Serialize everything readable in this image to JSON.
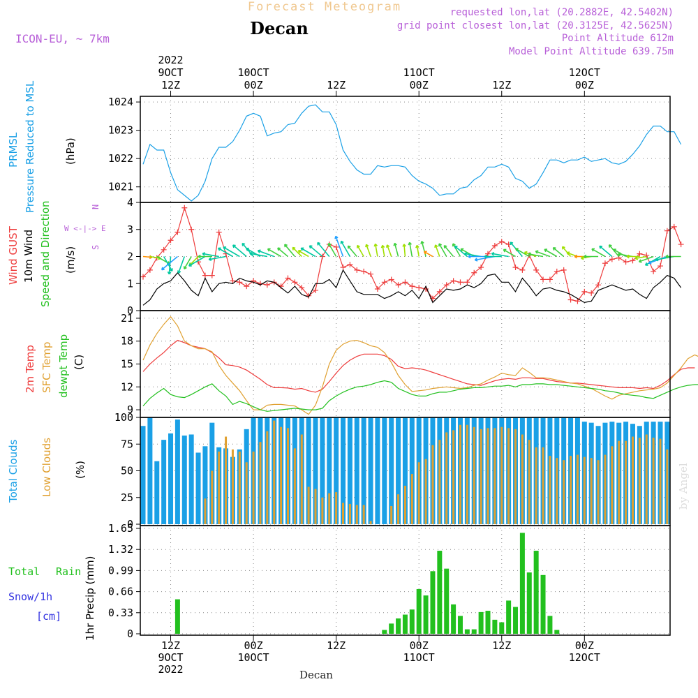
{
  "header": {
    "forecast_title": "Forecast Meteogram",
    "location": "Decan",
    "model": "ICON-EU, ~ 7km",
    "requested": "requested lon,lat (20.2882E, 42.5402N)",
    "gridpoint": "grid point closest lon,lat (20.3125E, 42.5625N)",
    "point_alt": "Point Altitude 612m",
    "model_alt": "Model Point Altitude 639.75m",
    "footer_location": "Decan",
    "watermark": "by Angel"
  },
  "colors": {
    "blue": "#1aa0e6",
    "red": "#ee3b3b",
    "orange": "#e0a030",
    "green": "#22c01e",
    "black": "#000000",
    "purple": "#b860d8",
    "grid": "#888888",
    "snow": "#3030e0"
  },
  "time_axis": {
    "top_labels": [
      {
        "i": 4,
        "lines": [
          "2022",
          "9OCT",
          "12Z"
        ]
      },
      {
        "i": 16,
        "lines": [
          "10OCT",
          "00Z"
        ]
      },
      {
        "i": 28,
        "lines": [
          "12Z"
        ]
      },
      {
        "i": 40,
        "lines": [
          "11OCT",
          "00Z"
        ]
      },
      {
        "i": 52,
        "lines": [
          "12Z"
        ]
      },
      {
        "i": 64,
        "lines": [
          "12OCT",
          "00Z"
        ]
      }
    ],
    "bottom_labels": [
      {
        "i": 4,
        "lines": [
          "12Z",
          "9OCT",
          "2022"
        ]
      },
      {
        "i": 16,
        "lines": [
          "00Z",
          "10OCT"
        ]
      },
      {
        "i": 28,
        "lines": [
          "12Z"
        ]
      },
      {
        "i": 40,
        "lines": [
          "00Z",
          "11OCT"
        ]
      },
      {
        "i": 52,
        "lines": [
          "12Z"
        ]
      },
      {
        "i": 64,
        "lines": [
          "00Z",
          "12OCT"
        ]
      }
    ]
  },
  "chart_data": [
    {
      "type": "line",
      "panel": "pressure",
      "title": "PRMSL Pressure Reduced to MSL",
      "ylabel": "(hPa)",
      "label_lines": [
        "PRMSL",
        "Pressure Reduced to MSL"
      ],
      "yticks": [
        1021,
        1022,
        1023,
        1024
      ],
      "ylim": [
        1020.45,
        1024.2
      ],
      "x_hours": "hourly steps from 08 UTC 9 OCT 2022",
      "series": [
        {
          "name": "PRMSL",
          "color": "#1aa0e6",
          "values": [
            1021.8,
            1022.5,
            1022.3,
            1022.3,
            1021.5,
            1020.9,
            1020.7,
            1020.5,
            1020.7,
            1021.2,
            1022.0,
            1022.4,
            1022.4,
            1022.6,
            1023.0,
            1023.5,
            1023.6,
            1023.5,
            1022.8,
            1022.9,
            1022.95,
            1023.2,
            1023.25,
            1023.6,
            1023.85,
            1023.9,
            1023.65,
            1023.65,
            1023.2,
            1022.3,
            1021.9,
            1021.6,
            1021.45,
            1021.45,
            1021.75,
            1021.7,
            1021.75,
            1021.75,
            1021.7,
            1021.4,
            1021.2,
            1021.1,
            1020.95,
            1020.7,
            1020.75,
            1020.75,
            1020.95,
            1021.0,
            1021.25,
            1021.4,
            1021.7,
            1021.7,
            1021.8,
            1021.7,
            1021.3,
            1021.2,
            1020.95,
            1021.1,
            1021.5,
            1021.95,
            1021.95,
            1021.85,
            1021.95,
            1021.95,
            1022.05,
            1021.9,
            1021.95,
            1022.0,
            1021.85,
            1021.8,
            1021.9,
            1022.15,
            1022.45,
            1022.85,
            1023.15,
            1023.15,
            1022.95,
            1022.95,
            1022.5
          ]
        }
      ]
    },
    {
      "type": "line",
      "panel": "wind",
      "title": "Wind GUST / 10m Wind Speed and Direction",
      "ylabel": "(m/s)",
      "label_lines": [
        "Wind GUST",
        "10m Wind",
        "Speed and Direction"
      ],
      "compass": [
        "N",
        "W <-|-> E",
        "S"
      ],
      "yticks": [
        0,
        1,
        2,
        3,
        4
      ],
      "ylim": [
        0,
        4
      ],
      "series": [
        {
          "name": "Wind GUST",
          "color": "#ee3b3b",
          "marker": "+",
          "values": [
            1.25,
            1.5,
            1.95,
            2.25,
            2.6,
            2.9,
            3.8,
            3.0,
            1.8,
            1.3,
            1.3,
            2.9,
            2.1,
            1.1,
            1.05,
            0.9,
            1.1,
            1.0,
            0.95,
            1.05,
            0.9,
            1.2,
            1.05,
            0.85,
            0.55,
            0.75,
            2.0,
            2.45,
            2.35,
            1.6,
            1.7,
            1.5,
            1.45,
            1.35,
            0.8,
            1.05,
            1.15,
            0.95,
            1.05,
            0.9,
            0.85,
            0.8,
            0.45,
            0.7,
            0.95,
            1.1,
            1.05,
            1.05,
            1.4,
            1.6,
            2.1,
            2.4,
            2.55,
            2.45,
            1.6,
            1.5,
            2.05,
            1.5,
            1.15,
            1.15,
            1.45,
            1.5,
            0.4,
            0.35,
            0.7,
            0.65,
            0.95,
            1.75,
            1.9,
            1.95,
            1.8,
            1.85,
            2.1,
            2.05,
            1.45,
            1.65,
            2.95,
            3.1,
            2.45
          ]
        },
        {
          "name": "10m Wind",
          "color": "#000000",
          "values": [
            0.2,
            0.4,
            0.8,
            1.0,
            1.1,
            1.4,
            1.1,
            0.75,
            0.55,
            1.2,
            0.7,
            1.0,
            1.05,
            1.0,
            1.2,
            1.1,
            1.05,
            0.95,
            1.1,
            1.05,
            0.85,
            0.65,
            0.9,
            0.6,
            0.5,
            1.0,
            1.0,
            1.15,
            0.85,
            1.5,
            1.1,
            0.7,
            0.6,
            0.6,
            0.6,
            0.45,
            0.55,
            0.7,
            0.55,
            0.75,
            0.45,
            0.9,
            0.3,
            0.55,
            0.8,
            0.75,
            0.8,
            0.95,
            0.85,
            1.0,
            1.3,
            1.35,
            1.05,
            1.05,
            0.7,
            1.2,
            0.9,
            0.55,
            0.8,
            0.85,
            0.75,
            0.7,
            0.6,
            0.45,
            0.3,
            0.35,
            0.75,
            0.85,
            0.95,
            0.85,
            0.75,
            0.8,
            0.6,
            0.45,
            0.85,
            1.05,
            1.3,
            1.2,
            0.85
          ]
        }
      ],
      "direction_arrows_deg": [
        95,
        100,
        120,
        150,
        185,
        230,
        200,
        210,
        225,
        240,
        270,
        280,
        260,
        300,
        300,
        310,
        320,
        300,
        280,
        290,
        300,
        310,
        320,
        315,
        300,
        300,
        310,
        320,
        330,
        340,
        330,
        320,
        330,
        340,
        350,
        350,
        340,
        345,
        355,
        350,
        350,
        345,
        300,
        340,
        330,
        320,
        330,
        310,
        300,
        280,
        270,
        260,
        270,
        280,
        300,
        320,
        300,
        290,
        280,
        290,
        300,
        310,
        320,
        290,
        270,
        260,
        270,
        300,
        310,
        320,
        300,
        280,
        270,
        260,
        250,
        240,
        250,
        260,
        270
      ]
    },
    {
      "type": "line",
      "panel": "temperature",
      "title": "2m Temp / SFC Temp / dewpt Temp",
      "ylabel": "(C)",
      "label_lines": [
        "2m Temp",
        "SFC Temp",
        "dewpt Temp"
      ],
      "yticks": [
        9,
        12,
        15,
        18,
        21
      ],
      "ylim": [
        8,
        22
      ],
      "series": [
        {
          "name": "2m Temp",
          "color": "#ee3b3b",
          "values": [
            14.0,
            15.0,
            15.8,
            16.5,
            17.4,
            18.1,
            17.8,
            17.4,
            17.2,
            17.0,
            16.5,
            15.8,
            14.9,
            14.8,
            14.6,
            14.2,
            13.6,
            13.0,
            12.3,
            11.9,
            11.9,
            11.85,
            11.7,
            11.8,
            11.5,
            11.3,
            11.7,
            12.7,
            13.8,
            14.8,
            15.5,
            16.0,
            16.3,
            16.3,
            16.3,
            16.1,
            15.6,
            14.7,
            14.4,
            14.5,
            14.4,
            14.2,
            13.9,
            13.6,
            13.3,
            13.0,
            12.7,
            12.4,
            12.3,
            12.2,
            12.5,
            12.8,
            13.0,
            13.1,
            13.0,
            13.2,
            13.2,
            13.1,
            13.1,
            12.9,
            12.7,
            12.6,
            12.5,
            12.5,
            12.4,
            12.3,
            12.2,
            12.1,
            12.0,
            11.9,
            11.9,
            11.9,
            11.8,
            11.9,
            11.8,
            12.2,
            12.8,
            13.6,
            14.3,
            14.5,
            14.5
          ]
        },
        {
          "name": "SFC Temp",
          "color": "#e0a030",
          "values": [
            15.5,
            17.5,
            19.0,
            20.2,
            21.2,
            20.0,
            18.0,
            17.4,
            17.0,
            17.0,
            16.6,
            14.8,
            13.5,
            12.5,
            11.5,
            10.2,
            9.0,
            9.0,
            9.6,
            9.7,
            9.7,
            9.6,
            9.5,
            9.0,
            8.4,
            9.6,
            12.0,
            15.0,
            16.8,
            17.6,
            18.0,
            18.1,
            17.8,
            17.4,
            17.2,
            16.5,
            15.2,
            13.5,
            12.3,
            11.4,
            11.5,
            11.6,
            11.8,
            11.9,
            12.0,
            11.9,
            11.8,
            11.9,
            12.2,
            12.4,
            12.9,
            13.3,
            13.8,
            13.6,
            13.5,
            14.5,
            13.9,
            13.2,
            13.2,
            13.1,
            12.9,
            12.7,
            12.5,
            12.4,
            12.1,
            11.8,
            11.3,
            10.8,
            10.4,
            10.9,
            11.1,
            11.3,
            11.5,
            11.6,
            11.7,
            11.9,
            12.5,
            13.5,
            14.5,
            15.7,
            16.2,
            15.8,
            14.5
          ]
        },
        {
          "name": "dewpt Temp",
          "color": "#22c01e",
          "values": [
            9.5,
            10.5,
            11.2,
            11.8,
            11.0,
            10.7,
            10.6,
            11.0,
            11.5,
            12.0,
            12.4,
            11.5,
            10.8,
            9.7,
            10.1,
            9.8,
            9.4,
            9.0,
            8.8,
            8.9,
            9.0,
            9.1,
            9.2,
            9.1,
            9.0,
            9.0,
            9.2,
            10.2,
            10.8,
            11.3,
            11.7,
            12.0,
            12.1,
            12.3,
            12.6,
            12.8,
            12.6,
            11.8,
            11.4,
            11.0,
            10.8,
            10.8,
            11.1,
            11.3,
            11.3,
            11.5,
            11.7,
            11.8,
            11.9,
            11.9,
            12.0,
            12.1,
            12.1,
            12.2,
            12.0,
            12.3,
            12.3,
            12.4,
            12.4,
            12.3,
            12.3,
            12.2,
            12.1,
            12.0,
            11.9,
            11.8,
            11.7,
            11.5,
            11.4,
            11.2,
            11.0,
            10.9,
            10.8,
            10.6,
            10.5,
            10.9,
            11.3,
            11.7,
            12.0,
            12.2,
            12.3,
            12.3
          ]
        }
      ]
    },
    {
      "type": "bar",
      "panel": "clouds",
      "title": "Total Clouds / Low Clouds",
      "ylabel": "(%)",
      "label_lines": [
        "Total Clouds",
        "Low Clouds"
      ],
      "yticks": [
        0,
        25,
        50,
        75,
        100
      ],
      "ylim": [
        0,
        100
      ],
      "series": [
        {
          "name": "Total Clouds",
          "color": "#1aa0e6",
          "values": [
            92,
            100,
            59,
            79,
            85,
            98,
            83,
            84,
            67,
            73,
            95,
            72,
            71,
            63,
            70,
            89,
            100,
            100,
            100,
            100,
            100,
            100,
            100,
            100,
            100,
            100,
            100,
            100,
            100,
            100,
            100,
            100,
            100,
            100,
            100,
            100,
            100,
            100,
            100,
            100,
            100,
            100,
            100,
            100,
            100,
            100,
            100,
            100,
            100,
            100,
            100,
            100,
            100,
            100,
            100,
            100,
            100,
            100,
            100,
            100,
            100,
            100,
            100,
            100,
            96,
            95,
            92,
            95,
            96,
            95,
            96,
            94,
            92,
            96,
            96,
            96,
            96,
            93,
            88,
            100,
            98
          ]
        },
        {
          "name": "Low Clouds",
          "color": "#e0a030",
          "values": [
            0,
            0,
            0,
            0,
            0,
            0,
            0,
            0,
            0,
            24,
            50,
            68,
            82,
            70,
            68,
            58,
            68,
            77,
            87,
            97,
            91,
            90,
            71,
            84,
            35,
            33,
            25,
            29,
            30,
            20,
            19,
            18,
            18,
            3,
            0,
            0,
            17,
            28,
            36,
            47,
            58,
            61,
            74,
            79,
            86,
            88,
            93,
            93,
            91,
            89,
            90,
            90,
            91,
            90,
            89,
            84,
            79,
            72,
            72,
            64,
            62,
            60,
            64,
            65,
            63,
            62,
            60,
            65,
            73,
            78,
            78,
            82,
            81,
            84,
            81,
            80,
            70,
            72,
            80,
            64
          ]
        }
      ]
    },
    {
      "type": "bar",
      "panel": "precip",
      "title": "1hr Precip (mm)",
      "ylabel": "1hr Precip (mm)",
      "label_lines": [
        "Total",
        "Rain",
        "Snow/1h",
        "[cm]"
      ],
      "yticks": [
        0,
        0.33,
        0.66,
        0.99,
        1.32,
        1.65
      ],
      "ytick_labels": [
        "0",
        "0.33",
        "0.66",
        "0.99",
        "1.32",
        "1.65"
      ],
      "ylim": [
        0,
        1.65
      ],
      "series": [
        {
          "name": "Total Rain",
          "color": "#22c01e",
          "values": [
            0,
            0,
            0,
            0,
            0,
            0.54,
            0,
            0,
            0,
            0,
            0,
            0,
            0,
            0,
            0,
            0,
            0,
            0,
            0,
            0,
            0,
            0,
            0,
            0,
            0,
            0,
            0,
            0,
            0,
            0,
            0,
            0,
            0,
            0,
            0,
            0.06,
            0.16,
            0.24,
            0.3,
            0.38,
            0.7,
            0.6,
            0.98,
            1.3,
            1.02,
            0.46,
            0.28,
            0.07,
            0.07,
            0.34,
            0.36,
            0.22,
            0.18,
            0.52,
            0.42,
            1.58,
            0.96,
            1.3,
            0.92,
            0.28,
            0.06,
            0,
            0,
            0,
            0,
            0,
            0,
            0,
            0,
            0,
            0,
            0,
            0,
            0,
            0,
            0,
            0,
            0,
            0,
            0
          ]
        }
      ]
    }
  ]
}
